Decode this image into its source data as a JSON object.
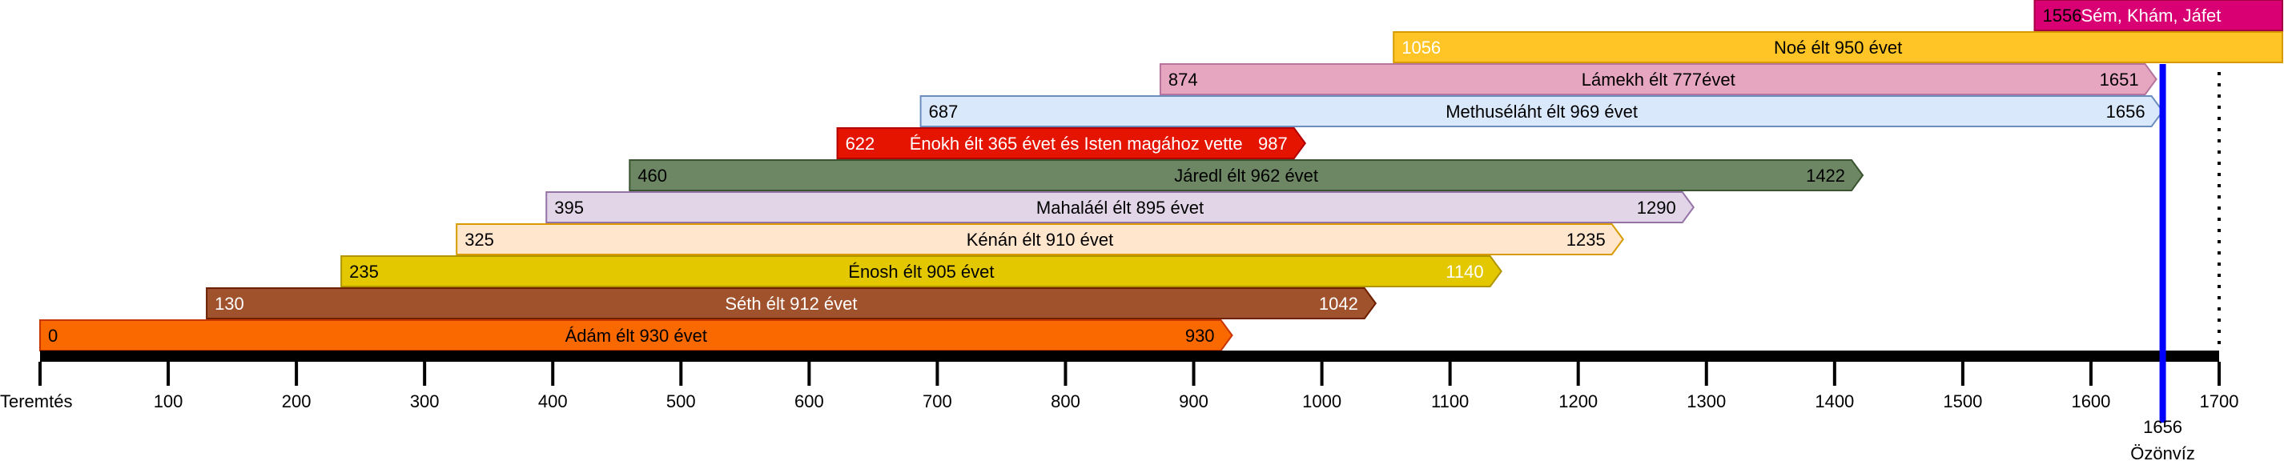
{
  "chart_data": {
    "type": "timeline",
    "axis": {
      "min": 0,
      "max": 1700,
      "tick_step": 100,
      "tick_labels": [
        "Teremtés",
        "100",
        "200",
        "300",
        "400",
        "500",
        "600",
        "700",
        "800",
        "900",
        "1000",
        "1100",
        "1200",
        "1300",
        "1400",
        "1500",
        "1600",
        "1700"
      ]
    },
    "flood": {
      "year": "1656",
      "label": "Özönvíz",
      "color": "#0000ff"
    },
    "bars": [
      {
        "id": "adam",
        "label": "Ádám élt 930 évet",
        "start": 0,
        "end": 930,
        "start_label": "0",
        "end_label": "930",
        "fill": "#fa6800",
        "stroke": "#c73500",
        "text_color": "#000000",
        "arrow": true
      },
      {
        "id": "seth",
        "label": "Séth élt 912 évet",
        "start": 130,
        "end": 1042,
        "start_label": "130",
        "end_label": "1042",
        "fill": "#a0522d",
        "stroke": "#6d1f00",
        "text_color": "#ffffff",
        "arrow": true
      },
      {
        "id": "enosh",
        "label": "Énosh élt 905 évet",
        "start": 235,
        "end": 1140,
        "start_label": "235",
        "end_label": "1140",
        "fill": "#e3c800",
        "stroke": "#b09500",
        "text_color": "#000000",
        "end_text_color": "#ffffff",
        "arrow": true
      },
      {
        "id": "kenan",
        "label": "Kénán élt 910 évet",
        "start": 325,
        "end": 1235,
        "start_label": "325",
        "end_label": "1235",
        "fill": "#ffe6cc",
        "stroke": "#d79b00",
        "text_color": "#000000",
        "arrow": true
      },
      {
        "id": "mahalalel",
        "label": "Mahaláél élt 895 évet",
        "start": 395,
        "end": 1290,
        "start_label": "395",
        "end_label": "1290",
        "fill": "#e1d5e7",
        "stroke": "#9673a6",
        "text_color": "#000000",
        "arrow": true
      },
      {
        "id": "jared",
        "label": "Járedl élt 962 évet",
        "start": 460,
        "end": 1422,
        "start_label": "460",
        "end_label": "1422",
        "fill": "#6d8764",
        "stroke": "#3a5431",
        "text_color": "#000000",
        "arrow": true
      },
      {
        "id": "enoch",
        "label": "Énokh élt 365 évet és Isten magához vette",
        "start": 622,
        "end": 987,
        "start_label": "622",
        "end_label": "987",
        "fill": "#e51400",
        "stroke": "#b20000",
        "text_color": "#ffffff",
        "arrow": true
      },
      {
        "id": "methuselah",
        "label": "Methuséláht élt 969 évet",
        "start": 687,
        "end": 1656,
        "start_label": "687",
        "end_label": "1656",
        "fill": "#dae8fc",
        "stroke": "#6c8ebf",
        "text_color": "#000000",
        "arrow": true
      },
      {
        "id": "lamech",
        "label": "Lámekh élt 777évet",
        "start": 874,
        "end": 1651,
        "start_label": "874",
        "end_label": "1651",
        "fill": "#e6a6bf",
        "stroke": "#b5739d",
        "text_color": "#000000",
        "arrow": true
      },
      {
        "id": "noah",
        "label": "Noé élt 950 évet",
        "start": 1056,
        "end": 2006,
        "start_label": "1056",
        "end_label": "",
        "fill": "#ffc425",
        "stroke": "#d79b00",
        "text_color": "#000000",
        "start_text_color": "#ffffff",
        "arrow": false
      },
      {
        "id": "sons",
        "label": "Sém, Khám, Jáfet",
        "start": 1556,
        "end": 2006,
        "start_label": "1556",
        "end_label": "",
        "fill": "#d80073",
        "stroke": "#a50040",
        "text_color": "#ffffff",
        "start_text_color": "#000000",
        "arrow": false
      }
    ]
  }
}
